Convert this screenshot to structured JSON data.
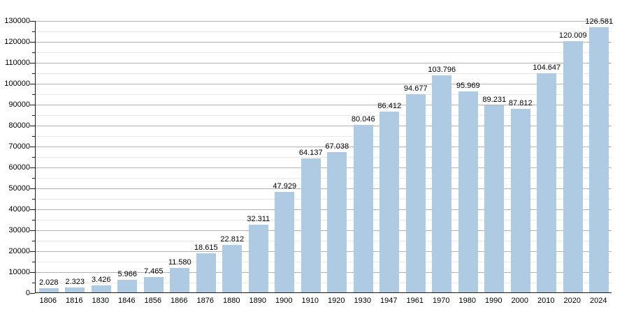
{
  "chart_data": {
    "type": "bar",
    "title": "",
    "xlabel": "",
    "ylabel": "",
    "grid": true,
    "legend": "none",
    "categories": [
      "1806",
      "1816",
      "1830",
      "1846",
      "1856",
      "1866",
      "1876",
      "1880",
      "1890",
      "1900",
      "1910",
      "1920",
      "1930",
      "1947",
      "1961",
      "1970",
      "1980",
      "1990",
      "2000",
      "2010",
      "2020",
      "2024"
    ],
    "values": [
      2028,
      2323,
      3426,
      5966,
      7465,
      11580,
      18615,
      22812,
      32311,
      47929,
      64137,
      67038,
      80046,
      86412,
      94677,
      103796,
      95969,
      89231,
      87812,
      104647,
      120009,
      126581
    ],
    "value_labels": [
      "2.028",
      "2.323",
      "3.426",
      "5.966",
      "7.465",
      "11.580",
      "18.615",
      "22.812",
      "32.311",
      "47.929",
      "64.137",
      "67.038",
      "80.046",
      "86.412",
      "94.677",
      "103.796",
      "95.969",
      "89.231",
      "87.812",
      "104.647",
      "120.009",
      "126.581"
    ],
    "ylim": [
      0,
      130000
    ],
    "y_major_step": 10000,
    "y_minor_step": 5000,
    "y_tick_labels": [
      "0",
      "10000",
      "20000",
      "30000",
      "40000",
      "50000",
      "60000",
      "70000",
      "80000",
      "90000",
      "100000",
      "110000",
      "120000",
      "130000"
    ]
  },
  "colors": {
    "bar_fill": "#afcbe3",
    "major_gridline": "#b2b2b2",
    "minor_gridline": "#e9e9e9",
    "axis": "#1a1a1a",
    "label_text": "#000000",
    "background": "#ffffff"
  }
}
